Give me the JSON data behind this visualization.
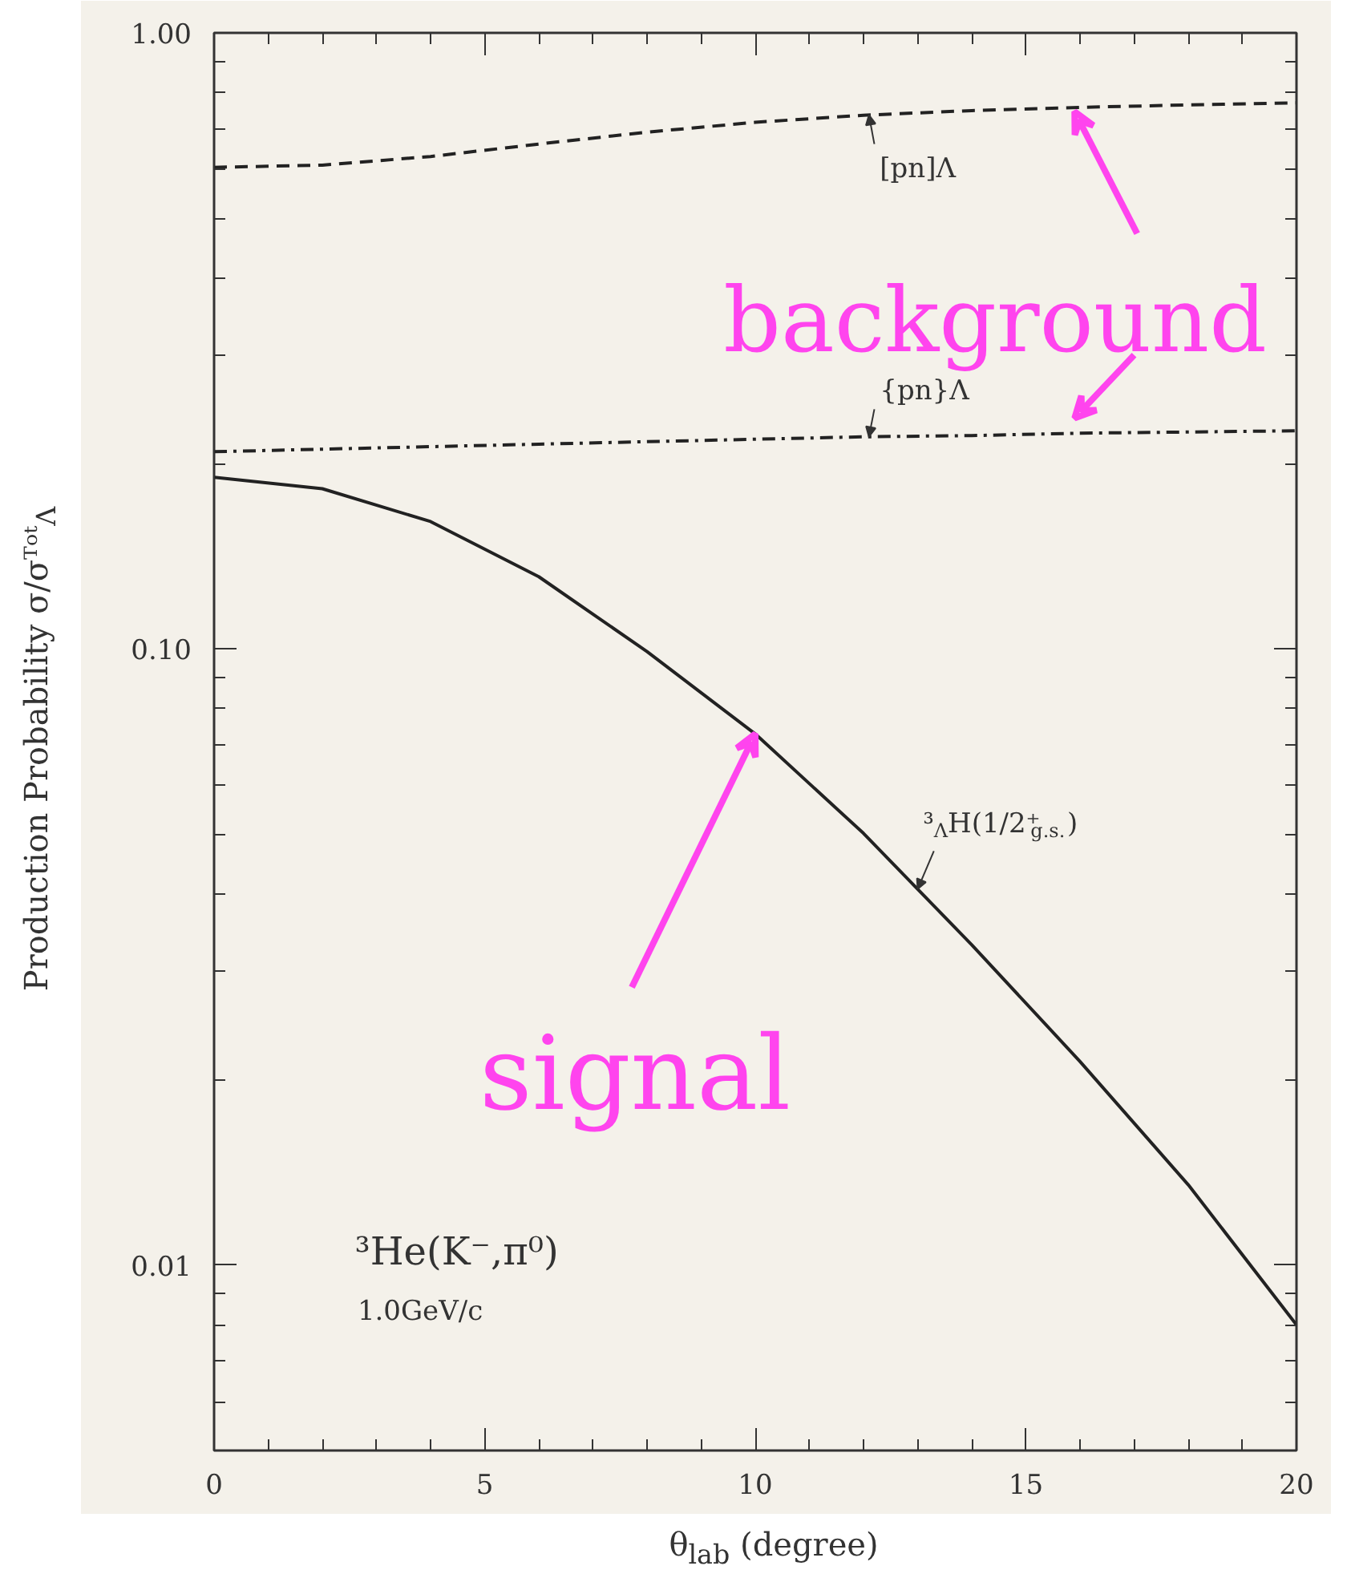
{
  "chart_data": {
    "type": "line",
    "xlabel": "θ$_{lab}$ (degree)",
    "ylabel": "Production Probability  σ/σᵀᵒᵗ$_{Λ}$",
    "x": [
      0,
      2,
      4,
      6,
      8,
      10,
      12,
      14,
      16,
      18,
      20
    ],
    "series": [
      {
        "name": "[pn]Λ",
        "color": "#222222",
        "line_style": "dashed",
        "values": [
          0.605,
          0.61,
          0.63,
          0.66,
          0.69,
          0.716,
          0.735,
          0.748,
          0.757,
          0.764,
          0.77
        ]
      },
      {
        "name": "{pn}Λ",
        "color": "#222222",
        "line_style": "dashdot",
        "values": [
          0.209,
          0.211,
          0.213,
          0.215,
          0.217,
          0.219,
          0.221,
          0.222,
          0.224,
          0.225,
          0.226
        ]
      },
      {
        "name": "³$_{Λ}$H(1/2⁺$_{g.s.}$)",
        "color": "#222222",
        "line_style": "solid",
        "values": [
          0.19,
          0.182,
          0.161,
          0.131,
          0.099,
          0.0728,
          0.0502,
          0.0331,
          0.0214,
          0.0135,
          0.008
        ]
      }
    ],
    "log": "y",
    "xlim": [
      0,
      20
    ],
    "ylim": [
      0.005,
      1.0
    ],
    "xticks": [
      0,
      {
        "value": 1,
        "label": null
      },
      {
        "value": 2,
        "label": null
      },
      {
        "value": 3,
        "label": null
      },
      {
        "value": 4,
        "label": null
      },
      5,
      {
        "value": 6,
        "label": null
      },
      {
        "value": 7,
        "label": null
      },
      {
        "value": 8,
        "label": null
      },
      {
        "value": 9,
        "label": null
      },
      10,
      {
        "value": 11,
        "label": null
      },
      {
        "value": 12,
        "label": null
      },
      {
        "value": 13,
        "label": null
      },
      {
        "value": 14,
        "label": null
      },
      15,
      {
        "value": 16,
        "label": null
      },
      {
        "value": 17,
        "label": null
      },
      {
        "value": 18,
        "label": null
      },
      {
        "value": 19,
        "label": null
      },
      20
    ],
    "yticks": [
      {
        "value": 0.006,
        "label": null
      },
      {
        "value": 0.007,
        "label": null
      },
      {
        "value": 0.008,
        "label": null
      },
      {
        "value": 0.009,
        "label": null
      },
      0.01,
      {
        "value": 0.02,
        "label": null
      },
      {
        "value": 0.03,
        "label": null
      },
      {
        "value": 0.04,
        "label": null
      },
      {
        "value": 0.05,
        "label": null
      },
      {
        "value": 0.06,
        "label": null
      },
      {
        "value": 0.07,
        "label": null
      },
      {
        "value": 0.08,
        "label": null
      },
      {
        "value": 0.09,
        "label": null
      },
      {
        "value": 0.1,
        "label": "0.10"
      },
      {
        "value": 0.2,
        "label": null
      },
      {
        "value": 0.3,
        "label": null
      },
      {
        "value": 0.4,
        "label": null
      },
      {
        "value": 0.5,
        "label": null
      },
      {
        "value": 0.6,
        "label": null
      },
      {
        "value": 0.7,
        "label": null
      },
      {
        "value": 0.8,
        "label": null
      },
      {
        "value": 0.9,
        "label": null
      },
      {
        "value": 1.0,
        "label": "1.00"
      }
    ],
    "grid": false,
    "legend": false,
    "marker": "none",
    "annotations": [
      "³He(K⁻,π⁰)",
      "1.0GeV/c",
      {
        "text": "background",
        "x": 15.9,
        "y": 0.745
      },
      {
        "text": "signal",
        "x": 10.0,
        "y": 0.0728
      }
    ]
  }
}
